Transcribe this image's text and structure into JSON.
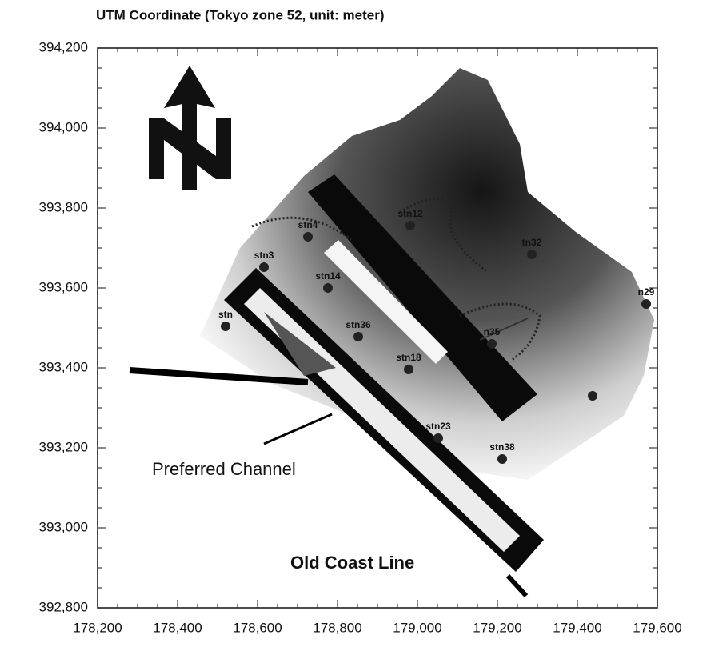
{
  "chart_data": {
    "type": "scatter",
    "title": "UTM Coordinate (Tokyo zone 52, unit: meter)",
    "annotations": [
      "Preferred Channel",
      "Old Coast Line"
    ],
    "x": [
      178726,
      178982,
      178616,
      178776,
      179286,
      179572,
      178520,
      178852,
      178978,
      179186,
      179052,
      179212,
      179438
    ],
    "y": [
      393728,
      393756,
      393652,
      393600,
      393684,
      393560,
      393504,
      393478,
      393396,
      393460,
      393224,
      393172,
      393330
    ],
    "point_labels": [
      "stn4",
      "stn12",
      "stn3",
      "stn14",
      "tn32",
      "n29",
      "stn",
      "stn36",
      "stn18",
      "n35",
      "stn23",
      "stn38",
      null
    ],
    "color": "#222222",
    "xlim": [
      178200,
      179600
    ],
    "ylim": [
      392800,
      394200
    ],
    "xticks": [
      {
        "value": 178200,
        "label": "178,200"
      },
      {
        "value": 178400,
        "label": "178,400"
      },
      {
        "value": 178600,
        "label": "178,600"
      },
      {
        "value": 178800,
        "label": "178,800"
      },
      {
        "value": 179000,
        "label": "179,000"
      },
      {
        "value": 179200,
        "label": "179,200"
      },
      {
        "value": 179400,
        "label": "179,400"
      },
      {
        "value": 179600,
        "label": "179,600"
      }
    ],
    "yticks": [
      {
        "value": 392800,
        "label": "392,800"
      },
      {
        "value": 393000,
        "label": "393,000"
      },
      {
        "value": 393200,
        "label": "393,200"
      },
      {
        "value": 393400,
        "label": "393,400"
      },
      {
        "value": 393600,
        "label": "393,600"
      },
      {
        "value": 393800,
        "label": "393,800"
      },
      {
        "value": 394000,
        "label": "394,000"
      },
      {
        "value": 394200,
        "label": "394,200"
      }
    ]
  }
}
